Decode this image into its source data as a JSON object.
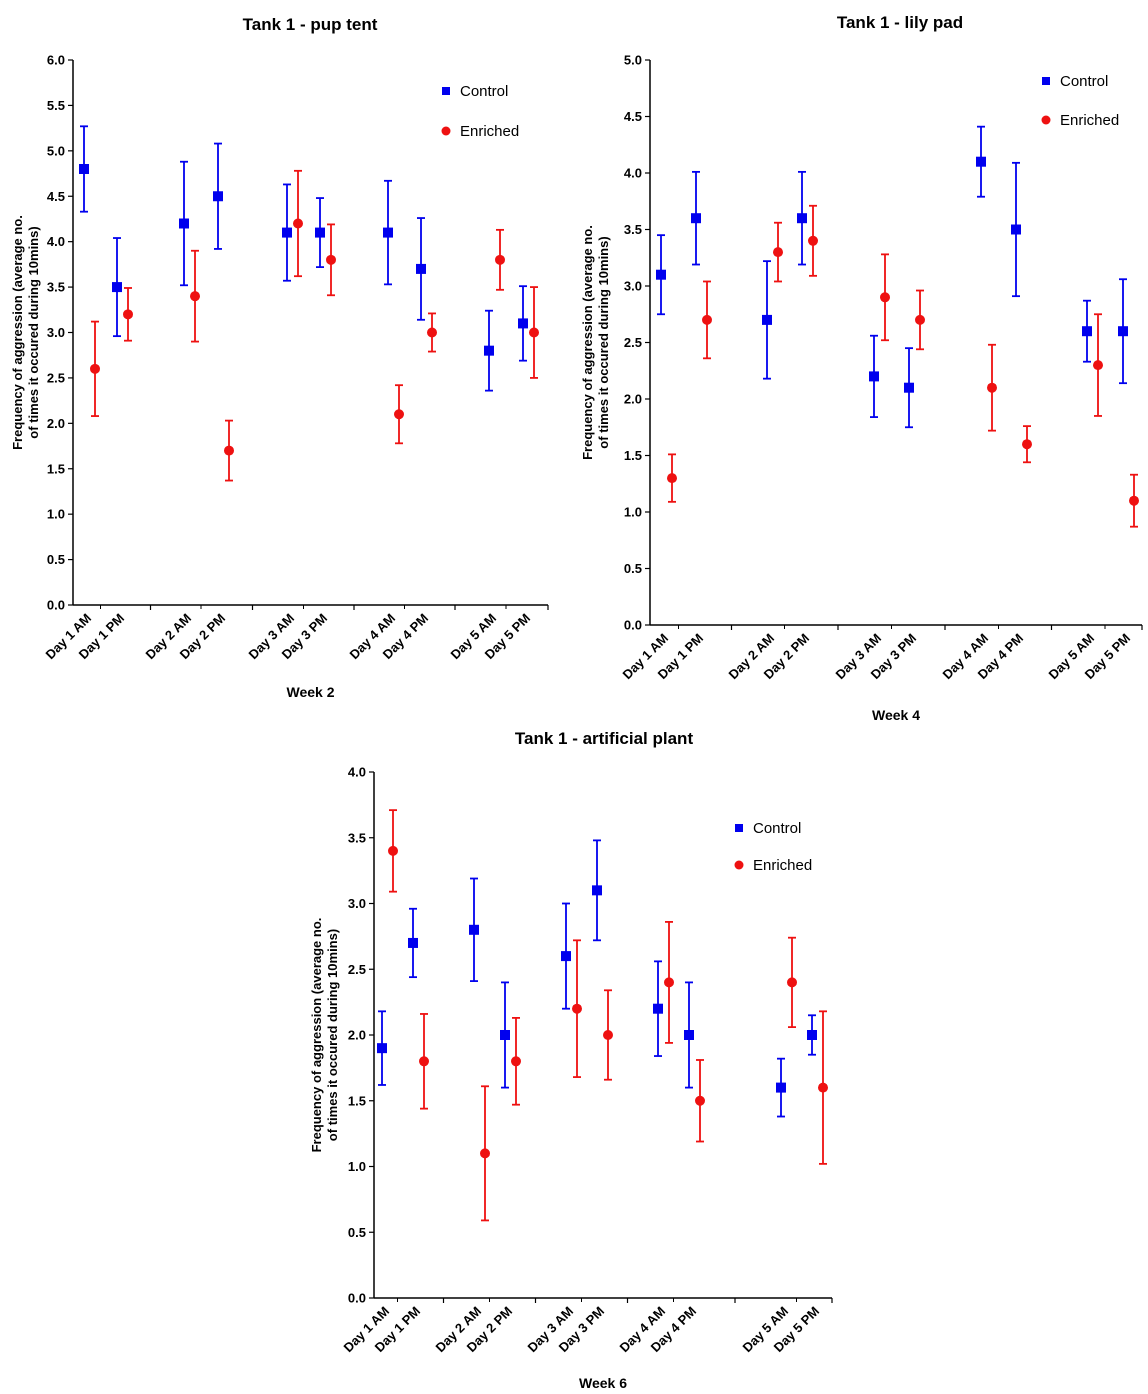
{
  "colors": {
    "control": "#0000ee",
    "enriched": "#ee1111",
    "axis": "#000000"
  },
  "chart_data": [
    {
      "type": "scatter",
      "title": "Tank 1 - pup tent",
      "xlabel": "Week 2",
      "ylabel": [
        "Frequency of  aggression (average no.",
        "of times it occured during 10mins)"
      ],
      "ylim": [
        0,
        6
      ],
      "yticks": [
        "0.0",
        "0.5",
        "1.0",
        "1.5",
        "2.0",
        "2.5",
        "3.0",
        "3.5",
        "4.0",
        "4.5",
        "5.0",
        "5.5",
        "6.0"
      ],
      "categories": [
        "Day 1 AM",
        "Day 1 PM",
        "Day 2 AM",
        "Day 2 PM",
        "Day 3 AM",
        "Day 3 PM",
        "Day 4 AM",
        "Day 4 PM",
        "Day 5 AM",
        "Day 5 PM"
      ],
      "legend_position": "top-right",
      "series": [
        {
          "name": "Control",
          "marker": "square",
          "values": [
            4.8,
            3.5,
            4.2,
            4.5,
            4.1,
            4.1,
            4.1,
            3.7,
            2.8,
            3.1
          ],
          "err": [
            0.47,
            0.54,
            0.68,
            0.58,
            0.53,
            0.38,
            0.57,
            0.56,
            0.44,
            0.41
          ]
        },
        {
          "name": "Enriched",
          "marker": "circle",
          "values": [
            2.6,
            3.2,
            3.4,
            1.7,
            4.2,
            3.8,
            2.1,
            3.0,
            3.8,
            3.0
          ],
          "err": [
            0.52,
            0.29,
            0.5,
            0.33,
            0.58,
            0.39,
            0.32,
            0.21,
            0.33,
            0.5
          ]
        }
      ]
    },
    {
      "type": "scatter",
      "title": "Tank 1 - lily pad",
      "xlabel": "Week 4",
      "ylabel": [
        "Frequency of  aggression (average no.",
        "of times it occured during 10mins)"
      ],
      "ylim": [
        0,
        5
      ],
      "yticks": [
        "0.0",
        "0.5",
        "1.0",
        "1.5",
        "2.0",
        "2.5",
        "3.0",
        "3.5",
        "4.0",
        "4.5",
        "5.0"
      ],
      "categories": [
        "Day 1 AM",
        "Day 1 PM",
        "Day 2 AM",
        "Day 2 PM",
        "Day 3 AM",
        "Day 3 PM",
        "Day 4 AM",
        "Day 4 PM",
        "Day 5 AM",
        "Day 5 PM"
      ],
      "legend_position": "top-right",
      "series": [
        {
          "name": "Control",
          "marker": "square",
          "values": [
            3.1,
            3.6,
            2.7,
            3.6,
            2.2,
            2.1,
            4.1,
            3.5,
            2.6,
            2.6
          ],
          "err": [
            0.35,
            0.41,
            0.52,
            0.41,
            0.36,
            0.35,
            0.31,
            0.59,
            0.27,
            0.46
          ]
        },
        {
          "name": "Enriched",
          "marker": "circle",
          "values": [
            1.3,
            2.7,
            3.3,
            3.4,
            2.9,
            2.7,
            2.1,
            1.6,
            2.3,
            1.1
          ],
          "err": [
            0.21,
            0.34,
            0.26,
            0.31,
            0.38,
            0.26,
            0.38,
            0.16,
            0.45,
            0.23
          ]
        }
      ]
    },
    {
      "type": "scatter",
      "title": "Tank 1 - artificial plant",
      "xlabel": "Week 6",
      "ylabel": [
        "Frequency of  aggression (average no.",
        "of times it occured during 10mins)"
      ],
      "ylim": [
        0,
        4
      ],
      "yticks": [
        "0.0",
        "0.5",
        "1.0",
        "1.5",
        "2.0",
        "2.5",
        "3.0",
        "3.5",
        "4.0"
      ],
      "categories": [
        "Day 1 AM",
        "Day 1 PM",
        "Day 2 AM",
        "Day 2 PM",
        "Day 3 AM",
        "Day 3 PM",
        "Day 4 AM",
        "Day 4 PM",
        "Day 5 AM",
        "Day 5 PM"
      ],
      "legend_position": "top-right",
      "series": [
        {
          "name": "Control",
          "marker": "square",
          "values": [
            1.9,
            2.7,
            2.8,
            2.0,
            2.6,
            3.1,
            2.2,
            2.0,
            1.6,
            2.0
          ],
          "err": [
            0.28,
            0.26,
            0.39,
            0.4,
            0.4,
            0.38,
            0.36,
            0.4,
            0.22,
            0.15
          ]
        },
        {
          "name": "Enriched",
          "marker": "circle",
          "values": [
            3.4,
            1.8,
            1.1,
            1.8,
            2.2,
            2.0,
            2.4,
            1.5,
            2.4,
            1.6
          ],
          "err": [
            0.31,
            0.36,
            0.51,
            0.33,
            0.52,
            0.34,
            0.46,
            0.31,
            0.34,
            0.58
          ]
        }
      ]
    }
  ]
}
